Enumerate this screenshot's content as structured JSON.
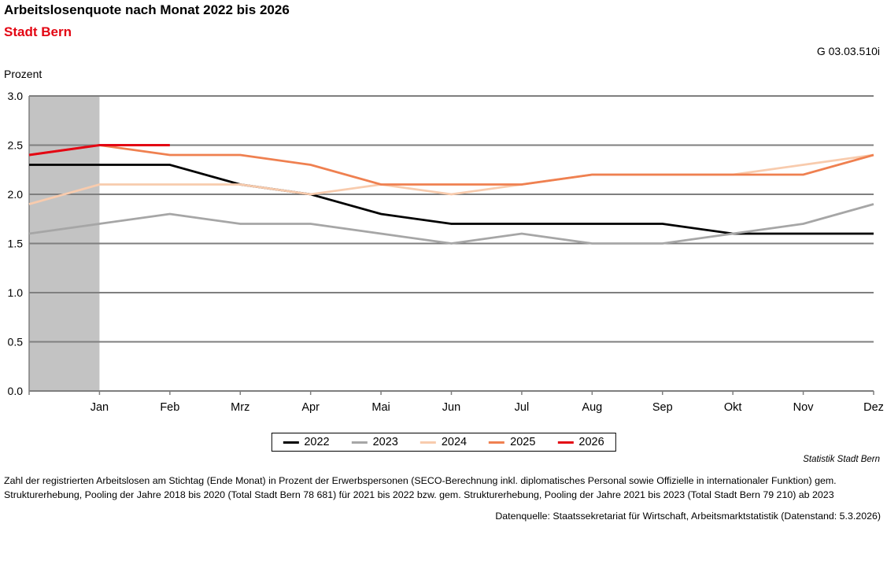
{
  "header": {
    "title": "Arbeitslosenquote nach Monat 2022 bis 2026",
    "subtitle": "Stadt Bern",
    "graph_id": "G 03.03.510i",
    "axis_unit_label": "Prozent"
  },
  "chart_data": {
    "type": "line",
    "title": "Arbeitslosenquote nach Monat 2022 bis 2026 — Stadt Bern",
    "ylabel": "Prozent",
    "xlabel": "",
    "ylim": [
      0.0,
      3.0
    ],
    "grid": true,
    "legend_position": "bottom-center",
    "y_ticks": [
      "3.0",
      "2.5",
      "2.0",
      "1.5",
      "1.0",
      "0.5",
      "0.0"
    ],
    "categories": [
      "Jan",
      "Feb",
      "Mrz",
      "Apr",
      "Mai",
      "Jun",
      "Jul",
      "Aug",
      "Sep",
      "Okt",
      "Nov",
      "Dez"
    ],
    "lead_in_note": "Each line starts on the y-axis with the December value of the previous year",
    "highlight_band": {
      "from": "y-axis",
      "to": "Jan",
      "color": "#c3c3c3"
    },
    "gridline_color": "#7f7f7f",
    "series": [
      {
        "name": "2022",
        "color": "#000000",
        "lead_in": 2.3,
        "values": [
          2.3,
          2.3,
          2.1,
          2.0,
          1.8,
          1.7,
          1.7,
          1.7,
          1.7,
          1.6,
          1.6,
          1.6
        ]
      },
      {
        "name": "2023",
        "color": "#a6a6a6",
        "lead_in": 1.6,
        "values": [
          1.7,
          1.8,
          1.7,
          1.7,
          1.6,
          1.5,
          1.6,
          1.5,
          1.5,
          1.6,
          1.7,
          1.9
        ]
      },
      {
        "name": "2024",
        "color": "#f8cbad",
        "lead_in": 1.9,
        "values": [
          2.1,
          2.1,
          2.1,
          2.0,
          2.1,
          2.0,
          2.1,
          2.2,
          2.2,
          2.2,
          2.3,
          2.4
        ]
      },
      {
        "name": "2025",
        "color": "#ef8050",
        "lead_in": 2.4,
        "values": [
          2.5,
          2.4,
          2.4,
          2.3,
          2.1,
          2.1,
          2.1,
          2.2,
          2.2,
          2.2,
          2.2,
          2.4
        ]
      },
      {
        "name": "2026",
        "color": "#e30613",
        "lead_in": 2.4,
        "values": [
          2.5,
          2.5,
          null,
          null,
          null,
          null,
          null,
          null,
          null,
          null,
          null,
          null
        ]
      }
    ]
  },
  "footer": {
    "attribution": "Statistik Stadt Bern",
    "footnote": "Zahl der registrierten Arbeitslosen am Stichtag (Ende Monat) in Prozent der Erwerbspersonen (SECO-Berechnung inkl. diplomatisches Personal sowie Offizielle in internationaler Funktion) gem. Strukturerhebung, Pooling der Jahre 2018 bis 2020 (Total Stadt Bern 78 681) für 2021 bis 2022 bzw. gem. Strukturerhebung, Pooling der Jahre 2021 bis 2023 (Total Stadt Bern 79 210) ab 2023",
    "source": "Datenquelle: Staatssekretariat für Wirtschaft, Arbeitsmarktstatistik (Datenstand: 5.3.2026)"
  }
}
